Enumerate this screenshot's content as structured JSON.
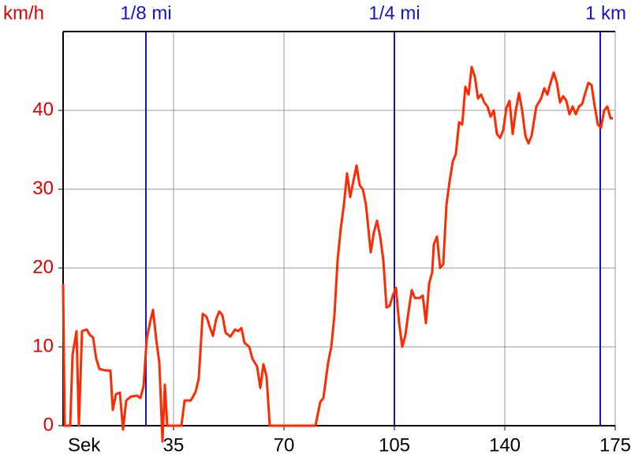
{
  "chart_data": {
    "type": "line",
    "y_label": "km/h",
    "x_label": "Sek",
    "xlim": [
      0,
      175
    ],
    "ylim": [
      0,
      50
    ],
    "xticks": [
      35,
      70,
      105,
      140,
      175
    ],
    "yticks": [
      0,
      10,
      20,
      30,
      40
    ],
    "grid": true,
    "color": "#ff2a00",
    "axis_label_color": "#e00000",
    "marker_color": "#1414c8",
    "markers": [
      {
        "label": "1/8 mi",
        "x": 26.25
      },
      {
        "label": "1/4 mi",
        "x": 105
      },
      {
        "label": "1 km",
        "x": 170.25
      }
    ],
    "x": [
      0,
      0.5,
      1,
      1.5,
      2.25,
      3,
      4.25,
      5,
      6,
      7.5,
      8.5,
      9.5,
      10.5,
      11.5,
      13.5,
      15,
      15.75,
      16.75,
      18,
      19,
      20,
      21.5,
      23.5,
      24.5,
      25.5,
      26.5,
      27.5,
      28.5,
      29.5,
      30.5,
      31.5,
      32.25,
      33,
      34,
      36,
      37.5,
      38.5,
      40.5,
      42,
      43,
      44.25,
      45.5,
      46.5,
      47.5,
      48.5,
      49.5,
      50.5,
      51.5,
      53,
      54.5,
      55.5,
      56.5,
      57.5,
      59,
      60,
      61.5,
      62.5,
      63.5,
      64.5,
      65.5,
      75,
      80,
      81.5,
      82.5,
      84,
      85,
      86,
      87,
      88,
      89,
      90,
      91,
      92,
      93,
      94,
      95,
      96,
      97.5,
      98.5,
      99.5,
      100.5,
      101.5,
      102.5,
      103.5,
      104.5,
      105.5,
      106.5,
      107.5,
      108.5,
      109.5,
      110.5,
      111.5,
      113,
      114,
      115,
      116,
      117,
      117.5,
      118.5,
      119.5,
      120.5,
      121.5,
      122.5,
      123.5,
      124.5,
      125.5,
      126.5,
      127.5,
      128.5,
      129.5,
      130.5,
      131.5,
      132.5,
      133.5,
      134.5,
      135.5,
      136.5,
      137.5,
      138.5,
      139.5,
      140.5,
      141.5,
      142.5,
      143.5,
      144.5,
      145.5,
      146.5,
      147.5,
      148.5,
      150,
      151.5,
      152.5,
      153.5,
      154.5,
      155.5,
      156.5,
      157.5,
      158.5,
      159.5,
      160.5,
      161.5,
      162.5,
      163.5,
      164.5,
      165.5,
      166.5,
      167.5,
      168.5,
      169.5,
      170.5,
      171.5,
      172.5,
      173.5,
      174.25
    ],
    "values": [
      18,
      0,
      0,
      0,
      0,
      9,
      12,
      0,
      12,
      12.2,
      11.5,
      11.2,
      8.5,
      7.2,
      7,
      7,
      2,
      4,
      4.2,
      -0.5,
      3.2,
      3.7,
      3.8,
      3.5,
      5,
      11,
      13,
      14.7,
      11,
      8,
      -2,
      5.2,
      0,
      0,
      0,
      0,
      3.2,
      3.2,
      4.3,
      6,
      14.2,
      13.8,
      12.5,
      11.4,
      13.5,
      14.5,
      14,
      11.8,
      11.3,
      12.2,
      12,
      12.4,
      10.5,
      10,
      8.5,
      7.5,
      4.8,
      7.8,
      6.2,
      0,
      0,
      0,
      3,
      3.5,
      8,
      10,
      14,
      21,
      25,
      28,
      32,
      29,
      31,
      33,
      30.5,
      30,
      28,
      22,
      24.5,
      26,
      24,
      21,
      15,
      15.2,
      16.5,
      17.5,
      13,
      10,
      11.5,
      14.5,
      17.2,
      16.2,
      16.2,
      16.5,
      13,
      18,
      19.5,
      23,
      24,
      20,
      20.5,
      28,
      31,
      33.5,
      34.5,
      38.5,
      38.2,
      43,
      42,
      45.5,
      44.3,
      41.5,
      42,
      41,
      40.5,
      39.2,
      40,
      37,
      36.5,
      37.5,
      40.3,
      41.2,
      37,
      40,
      42.2,
      40,
      36.8,
      35.8,
      36.8,
      40.5,
      41.5,
      42.8,
      42,
      43.5,
      44.8,
      43.5,
      41,
      41.8,
      41.2,
      39.5,
      40.5,
      39.5,
      40.5,
      40.8,
      42.2,
      43.5,
      43.2,
      40.5,
      38.2,
      37.8,
      40,
      40.5,
      39,
      39
    ]
  }
}
